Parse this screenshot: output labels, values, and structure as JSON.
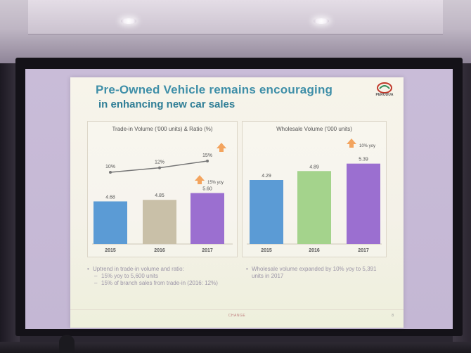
{
  "slide": {
    "title_line1": "Pre-Owned Vehicle remains encouraging",
    "title_line2": "in enhancing new car sales",
    "logo_text": "PERODUA",
    "page_number": "8",
    "footer_brand": "CHANGE"
  },
  "colors": {
    "title": "#3f8fa8",
    "bar_blue": "#5b9bd5",
    "bar_beige": "#c9c0a8",
    "bar_purple": "#9b6fd0",
    "bar_green": "#a4d38c",
    "arrow_orange": "#f3a45e"
  },
  "chart_data": [
    {
      "type": "bar",
      "title": "Trade-in Volume ('000 units) & Ratio (%)",
      "categories": [
        "2015",
        "2016",
        "2017"
      ],
      "values": [
        4.68,
        4.85,
        5.6
      ],
      "value_labels": [
        "4.68",
        "4.85",
        "5.60"
      ],
      "ratio_line": {
        "values": [
          10,
          12,
          15
        ],
        "labels": [
          "10%",
          "12%",
          "15%"
        ]
      },
      "annotation": "15% yoy",
      "ylim": [
        0,
        8.5
      ]
    },
    {
      "type": "bar",
      "title": "Wholesale Volume ('000 units)",
      "categories": [
        "2015",
        "2016",
        "2017"
      ],
      "values": [
        4.29,
        4.89,
        5.39
      ],
      "value_labels": [
        "4.29",
        "4.89",
        "5.39"
      ],
      "annotation": "10% yoy",
      "ylim": [
        0,
        6.6
      ]
    }
  ],
  "bullets": {
    "left": {
      "main": "Uptrend in trade-in volume and ratio:",
      "sub1": "15% yoy to 5,600 units",
      "sub2": "15% of branch sales from trade-in (2016: 12%)"
    },
    "right": {
      "main": "Wholesale volume expanded by 10% yoy to 5,391 units in 2017"
    }
  }
}
